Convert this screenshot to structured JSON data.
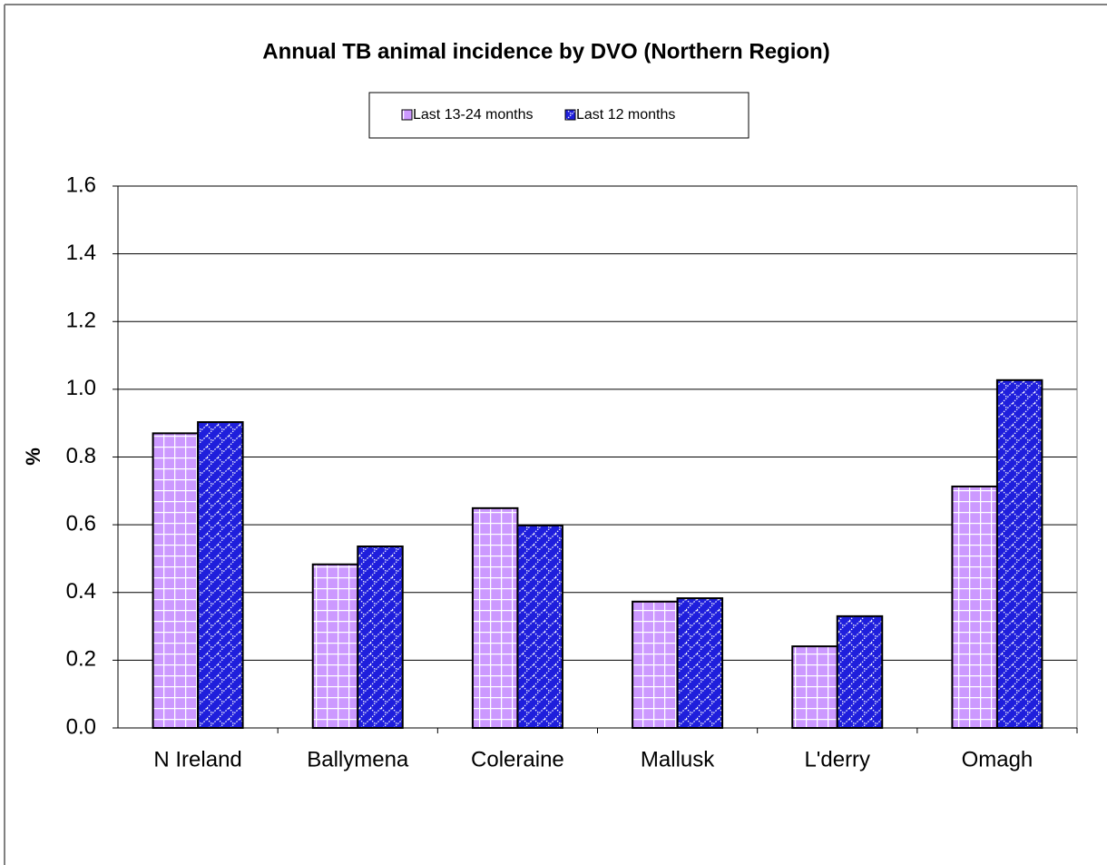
{
  "chart_data": {
    "type": "bar",
    "title": "Annual TB animal incidence by DVO (Northern Region)",
    "y_label": "%",
    "categories": [
      "N Ireland",
      "Ballymena",
      "Coleraine",
      "Mallusk",
      "L'derry",
      "Omagh"
    ],
    "series": [
      {
        "name": "Last 13-24 months",
        "color": "#cc99ff",
        "values": [
          0.87,
          0.483,
          0.649,
          0.373,
          0.241,
          0.713
        ]
      },
      {
        "name": "Last 12 months",
        "color": "#1f1fdc",
        "values": [
          0.903,
          0.536,
          0.598,
          0.383,
          0.33,
          1.027
        ]
      }
    ],
    "ylim": [
      0,
      1.6
    ],
    "yticks": [
      {
        "value": 0,
        "label": "0.0"
      },
      0.2,
      0.4,
      0.6,
      0.8,
      {
        "value": 1,
        "label": "1.0"
      },
      1.2,
      1.4,
      1.6
    ],
    "grid": true,
    "legend": "top"
  }
}
